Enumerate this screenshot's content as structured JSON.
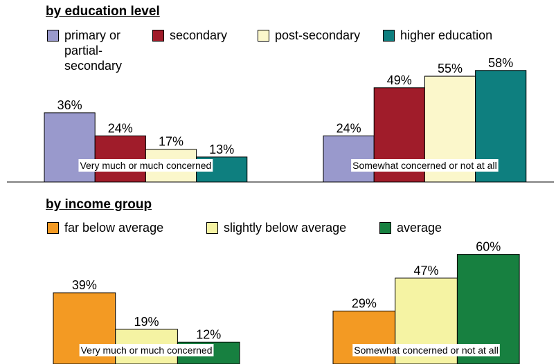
{
  "chart_data": [
    {
      "type": "bar",
      "title": "by education level",
      "categories": [
        "Very much or much concerned",
        "Somewhat concerned or not at all"
      ],
      "series": [
        {
          "name": "primary or partial-secondary",
          "color": "#9999cc",
          "values": [
            36,
            24
          ],
          "value_labels": [
            "36%",
            "24%"
          ]
        },
        {
          "name": "secondary",
          "color": "#a01c2a",
          "values": [
            24,
            49
          ],
          "value_labels": [
            "24%",
            "49%"
          ]
        },
        {
          "name": "post-secondary",
          "color": "#fbf7cb",
          "values": [
            17,
            55
          ],
          "value_labels": [
            "17%",
            "55%"
          ]
        },
        {
          "name": "higher education",
          "color": "#0e7f7f",
          "values": [
            13,
            58
          ],
          "value_labels": [
            "13%",
            "58%"
          ]
        }
      ]
    },
    {
      "type": "bar",
      "title": "by income group",
      "categories": [
        "Very much or much concerned",
        "Somewhat concerned or not at all"
      ],
      "series": [
        {
          "name": "far below average",
          "color": "#f39a23",
          "values": [
            39,
            29
          ],
          "value_labels": [
            "39%",
            "29%"
          ]
        },
        {
          "name": "slightly below average",
          "color": "#f5f3a3",
          "values": [
            19,
            47
          ],
          "value_labels": [
            "19%",
            "47%"
          ]
        },
        {
          "name": "average",
          "color": "#178040",
          "values": [
            12,
            60
          ],
          "value_labels": [
            "12%",
            "60%"
          ]
        }
      ]
    }
  ]
}
